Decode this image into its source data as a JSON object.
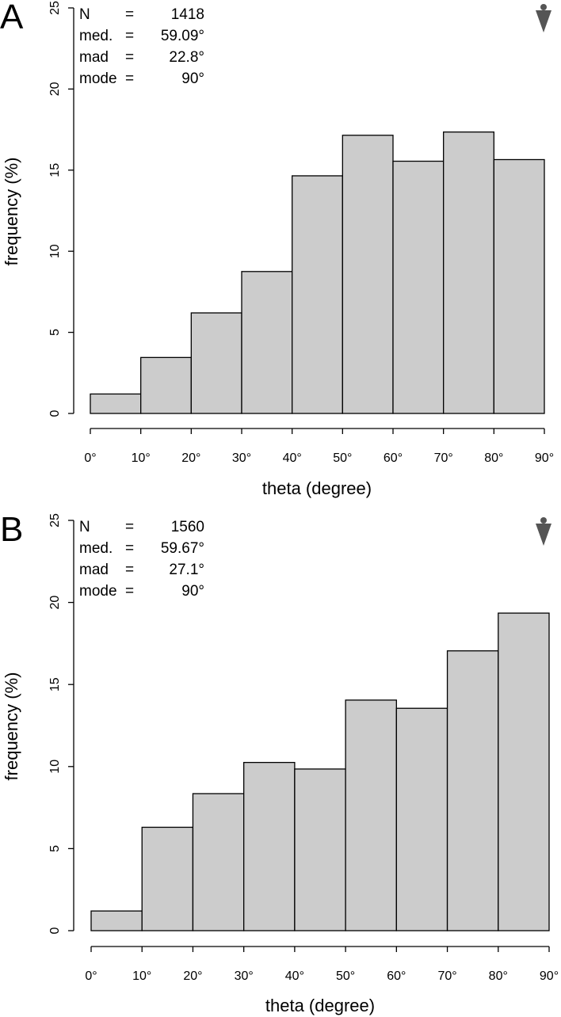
{
  "chart_data": [
    {
      "type": "bar",
      "panel_label": "A",
      "categories": [
        "0°-10°",
        "10°-20°",
        "20°-30°",
        "30°-40°",
        "40°-50°",
        "50°-60°",
        "60°-70°",
        "70°-80°",
        "80°-90°"
      ],
      "bin_edges": [
        0,
        10,
        20,
        30,
        40,
        50,
        60,
        70,
        80,
        90
      ],
      "values": [
        1.2,
        3.45,
        6.2,
        8.75,
        14.65,
        17.15,
        15.55,
        17.35,
        15.65
      ],
      "xlabel": "theta (degree)",
      "ylabel": "frequency (%)",
      "ylim": [
        0,
        25
      ],
      "yticks": [
        0,
        5,
        10,
        15,
        20,
        25
      ],
      "xticks": [
        "0°",
        "10°",
        "20°",
        "30°",
        "40°",
        "50°",
        "60°",
        "70°",
        "80°",
        "90°"
      ],
      "stats": {
        "rows": [
          {
            "label": "N",
            "eq": "=",
            "value": "1418"
          },
          {
            "label": "med.",
            "eq": "=",
            "value": "59.09°"
          },
          {
            "label": "mad",
            "eq": "=",
            "value": "22.8°"
          },
          {
            "label": "mode",
            "eq": "=",
            "value": "90°"
          }
        ]
      },
      "marker_icon": "arrow-down-person-icon",
      "bar_color": "#cccccc"
    },
    {
      "type": "bar",
      "panel_label": "B",
      "categories": [
        "0°-10°",
        "10°-20°",
        "20°-30°",
        "30°-40°",
        "40°-50°",
        "50°-60°",
        "60°-70°",
        "70°-80°",
        "80°-90°"
      ],
      "bin_edges": [
        0,
        10,
        20,
        30,
        40,
        50,
        60,
        70,
        80,
        90
      ],
      "values": [
        1.2,
        6.3,
        8.35,
        10.25,
        9.85,
        14.05,
        13.55,
        17.05,
        19.35
      ],
      "xlabel": "theta (degree)",
      "ylabel": "frequency (%)",
      "ylim": [
        0,
        25
      ],
      "yticks": [
        0,
        5,
        10,
        15,
        20,
        25
      ],
      "xticks": [
        "0°",
        "10°",
        "20°",
        "30°",
        "40°",
        "50°",
        "60°",
        "70°",
        "80°",
        "90°"
      ],
      "stats": {
        "rows": [
          {
            "label": "N",
            "eq": "=",
            "value": "1560"
          },
          {
            "label": "med.",
            "eq": "=",
            "value": "59.67°"
          },
          {
            "label": "mad",
            "eq": "=",
            "value": "27.1°"
          },
          {
            "label": "mode",
            "eq": "=",
            "value": "90°"
          }
        ]
      },
      "marker_icon": "arrow-down-person-icon",
      "bar_color": "#cccccc"
    }
  ]
}
